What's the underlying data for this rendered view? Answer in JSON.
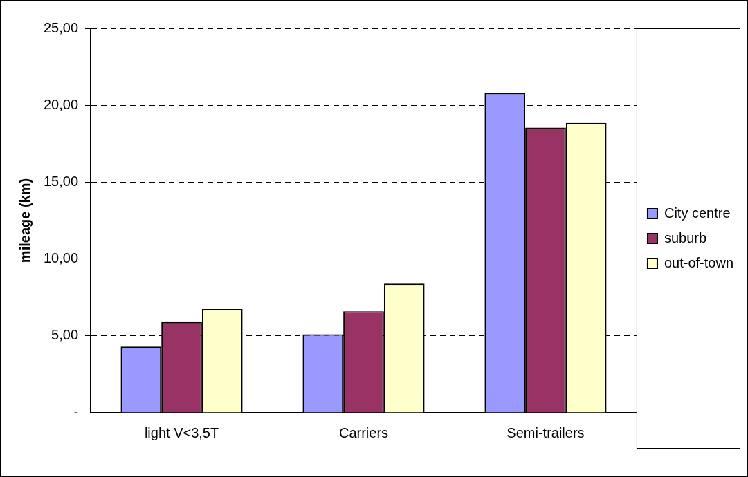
{
  "chart_data": {
    "type": "bar",
    "ylabel": "mileage (km)",
    "categories": [
      "light V<3,5T",
      "Carriers",
      "Semi-trailers"
    ],
    "series": [
      {
        "name": "City centre",
        "color": "#9999ff",
        "values": [
          4.3,
          5.1,
          20.8
        ]
      },
      {
        "name": "suburb",
        "color": "#993366",
        "values": [
          5.9,
          6.6,
          18.55
        ]
      },
      {
        "name": "out-of-town",
        "color": "#ffffcc",
        "values": [
          6.75,
          8.4,
          18.85
        ]
      }
    ],
    "ylim": [
      0,
      25
    ],
    "yticks": [
      {
        "value": 0,
        "label": "-"
      },
      {
        "value": 5,
        "label": "5,00"
      },
      {
        "value": 10,
        "label": "10,00"
      },
      {
        "value": 15,
        "label": "15,00"
      },
      {
        "value": 20,
        "label": "20,00"
      },
      {
        "value": 25,
        "label": "25,00"
      }
    ],
    "grid": "y",
    "legend": "right"
  }
}
